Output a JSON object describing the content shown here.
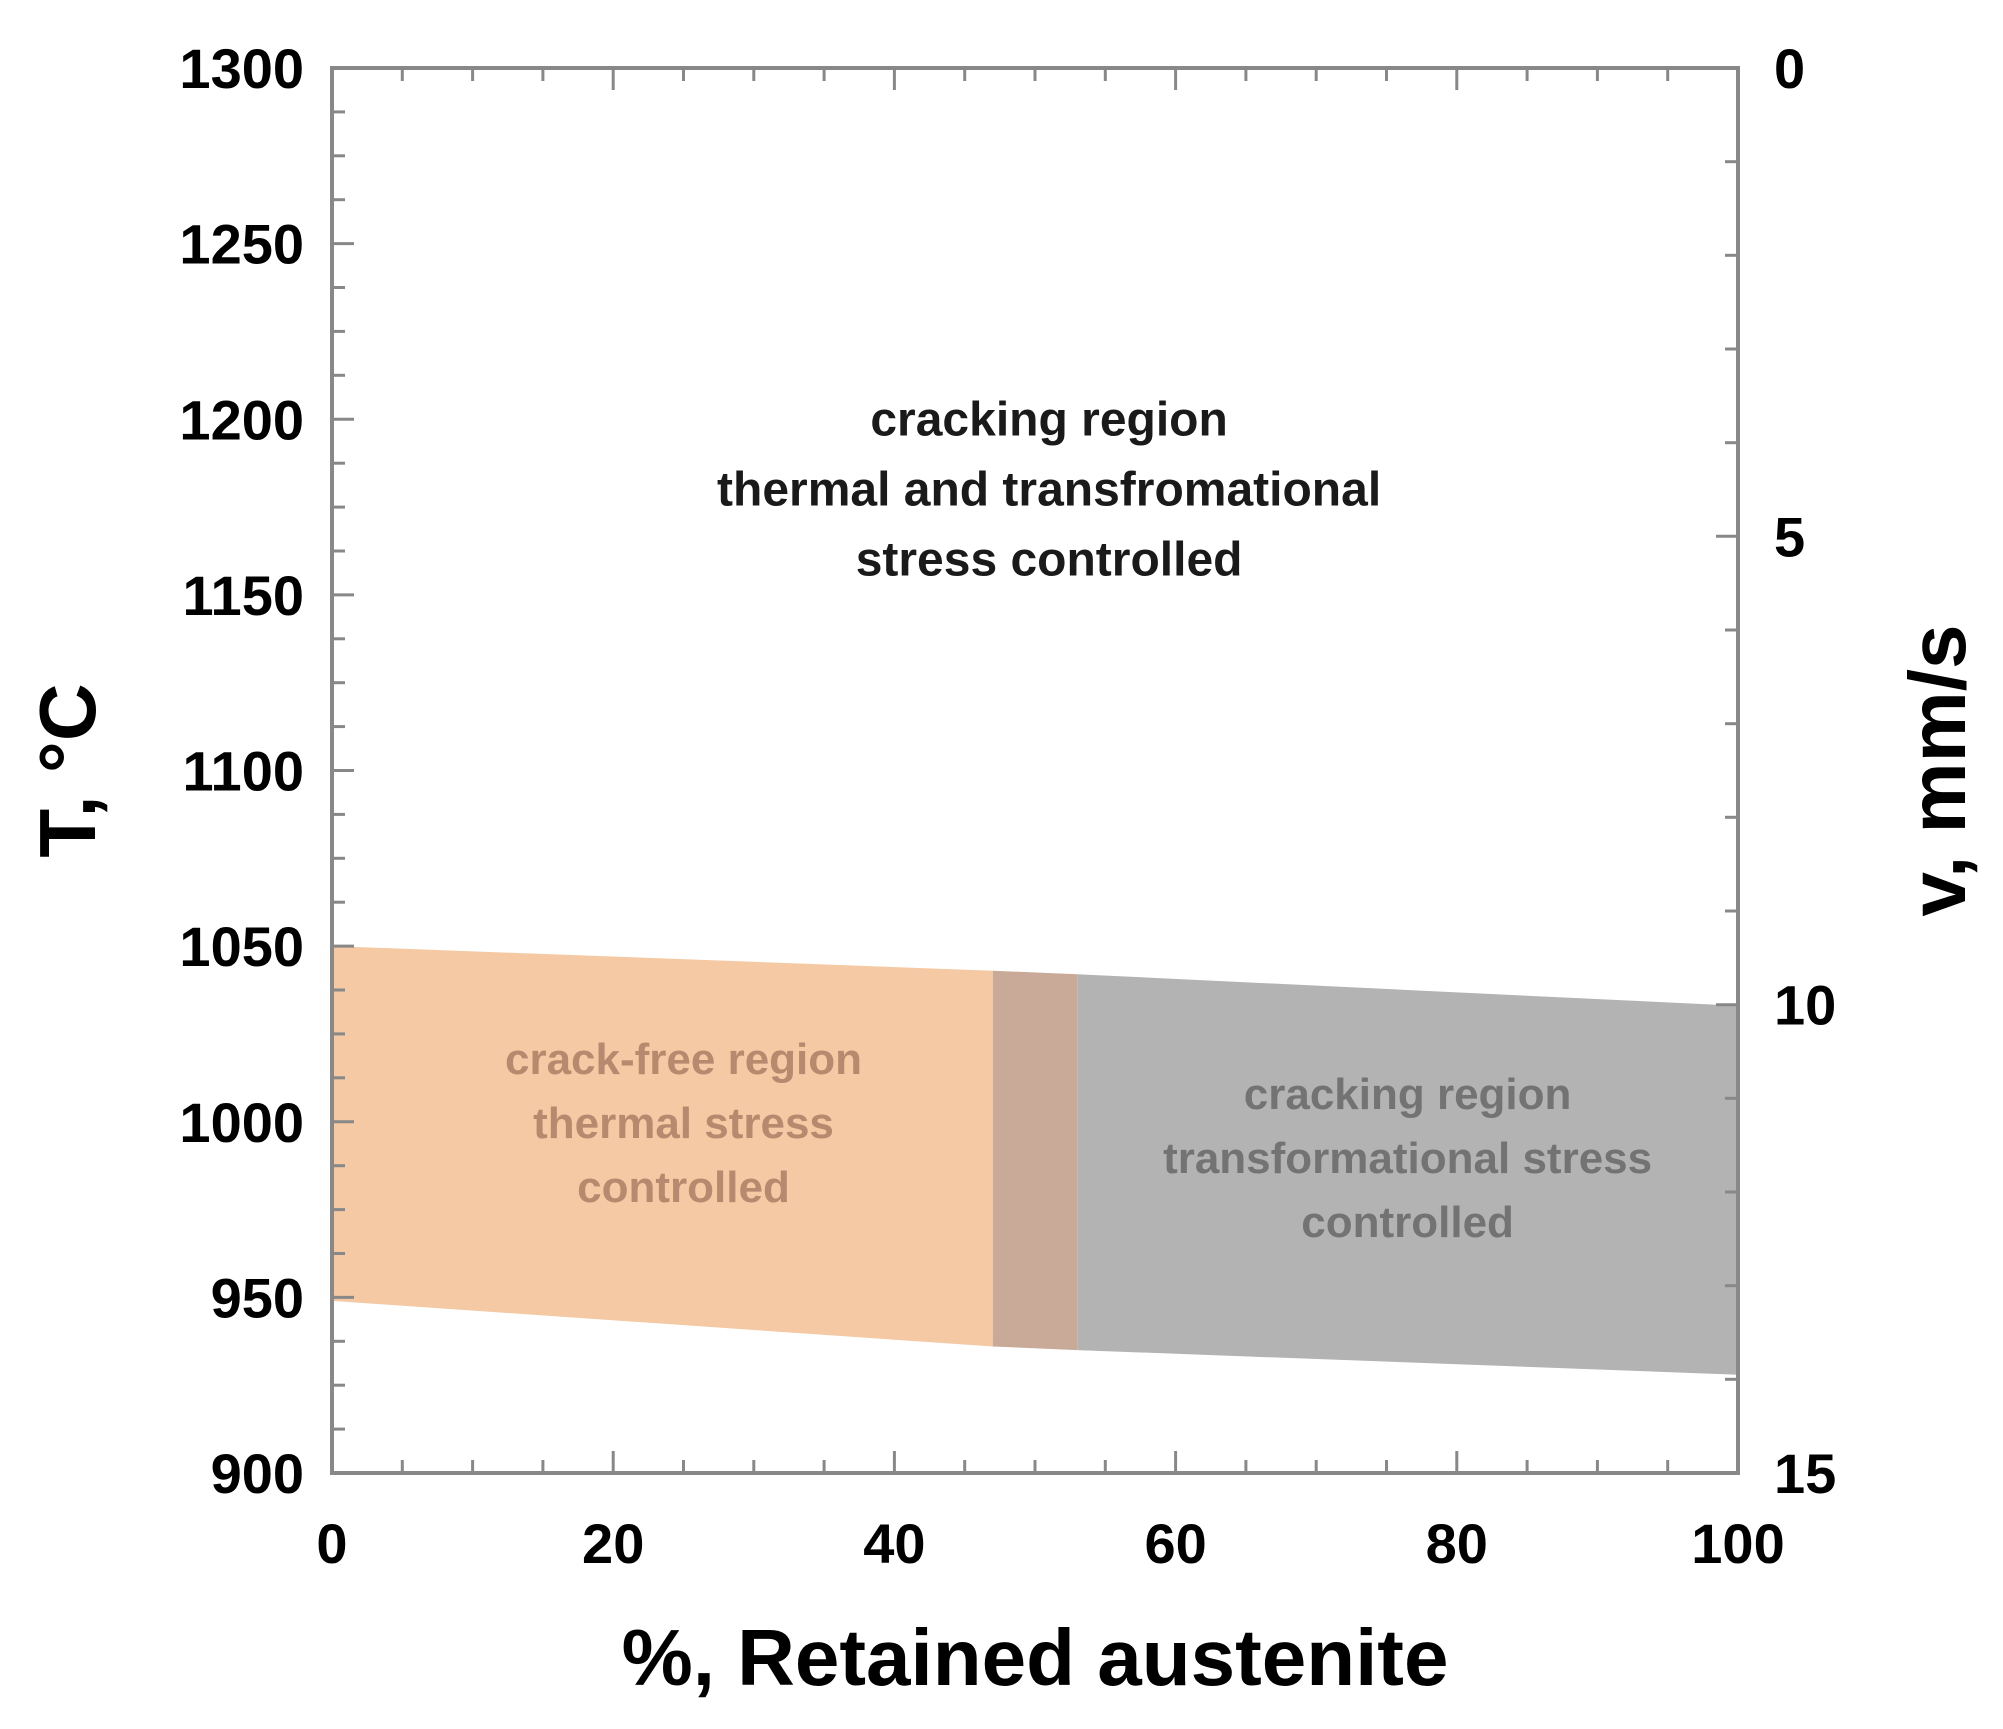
{
  "chart_data": {
    "type": "area",
    "xlabel": "%, Retained austenite",
    "ylabel": "T, °C",
    "y2label": "v, mm/s",
    "xlim": [
      0,
      100
    ],
    "ylim": [
      900,
      1300
    ],
    "y2lim": [
      0,
      15
    ],
    "y2_inverted": true,
    "x_ticks": [
      "0",
      "20",
      "40",
      "60",
      "80",
      "100"
    ],
    "y_ticks": [
      "900",
      "950",
      "1000",
      "1050",
      "1100",
      "1150",
      "1200",
      "1250",
      "1300"
    ],
    "y2_ticks": [
      "0",
      "5",
      "10",
      "15"
    ],
    "grid": false,
    "regions": [
      {
        "id": "crack-free",
        "color": "#f5c9a3",
        "polygon": [
          [
            0,
            1050
          ],
          [
            47,
            1043
          ],
          [
            47,
            936
          ],
          [
            0,
            949
          ]
        ],
        "label_lines": [
          "crack-free region",
          "thermal stress",
          "controlled"
        ],
        "label_pos": [
          25,
          1000
        ]
      },
      {
        "id": "overlap",
        "color": "#c9aa98",
        "polygon": [
          [
            47,
            1043
          ],
          [
            53,
            1042
          ],
          [
            53,
            935
          ],
          [
            47,
            936
          ]
        ],
        "label_lines": [],
        "label_pos": [
          50,
          990
        ]
      },
      {
        "id": "cracking-transformational",
        "color": "#b3b3b3",
        "polygon": [
          [
            53,
            1042
          ],
          [
            100,
            1033
          ],
          [
            100,
            928
          ],
          [
            53,
            935
          ]
        ],
        "label_lines": [
          "cracking region",
          "transformational stress",
          "controlled"
        ],
        "label_pos": [
          76.5,
          990
        ]
      },
      {
        "id": "cracking-thermal-transformational",
        "color": "#000000",
        "polygon": [],
        "label_lines": [
          "cracking region",
          "thermal and transfromational",
          "stress controlled"
        ],
        "label_pos": [
          51,
          1180
        ]
      }
    ]
  }
}
